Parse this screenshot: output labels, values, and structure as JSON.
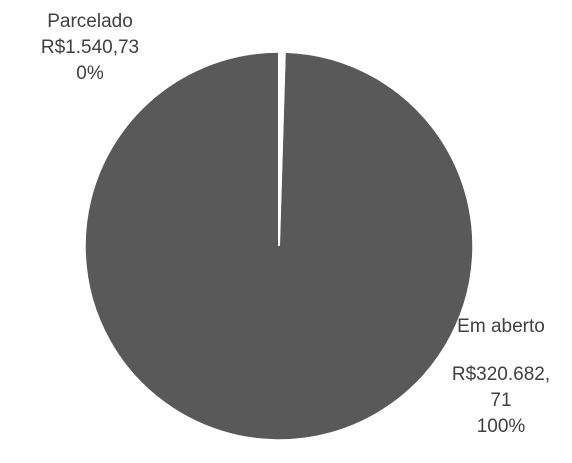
{
  "chart_data": {
    "type": "pie",
    "slices": [
      {
        "name": "Parcelado",
        "value": 1540.73,
        "value_label": "R$1.540,73",
        "percent_label": "0%",
        "color": "#ffffff"
      },
      {
        "name": "Em aberto",
        "value": 320682.71,
        "value_label_line1": "R$320.682,",
        "value_label_line2": "71",
        "percent_label": "100%",
        "color": "#595959"
      }
    ],
    "title": "",
    "legend": "none",
    "separator_color": "#ffffff"
  }
}
